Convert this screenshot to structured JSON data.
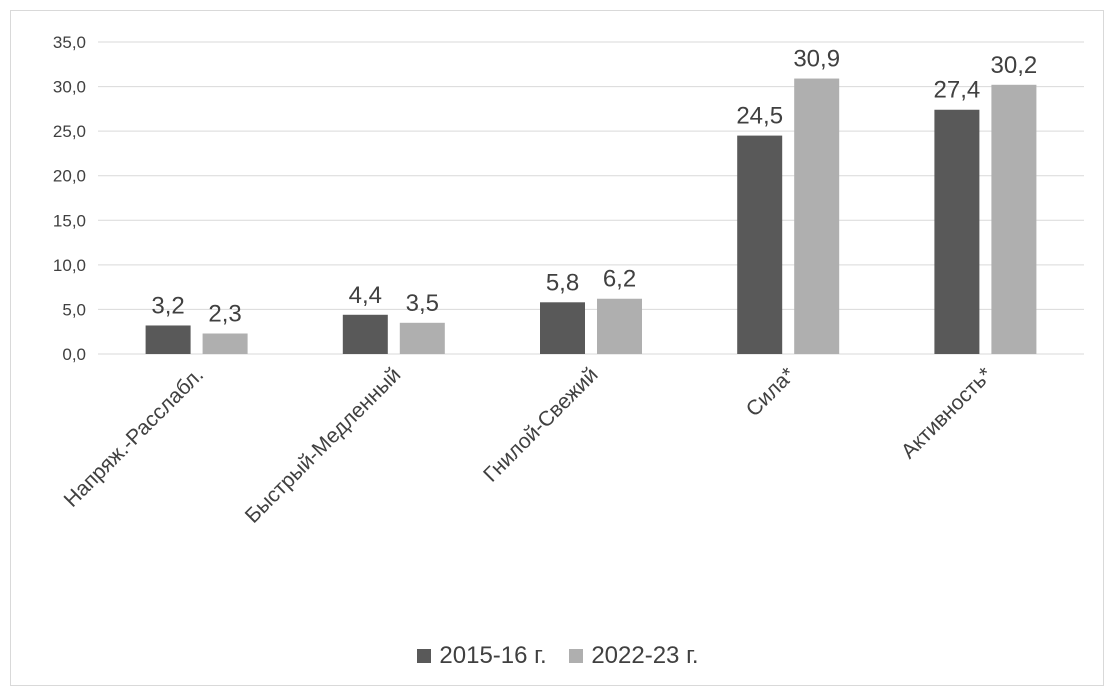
{
  "chart_data": {
    "type": "bar",
    "categories": [
      "Напряж.-Расслабл.",
      "Быстрый-Медленный",
      "Гнилой-Свежий",
      "Сила*",
      "Активность*"
    ],
    "series": [
      {
        "name": "2015-16 г.",
        "values": [
          3.2,
          4.4,
          5.8,
          24.5,
          27.4
        ],
        "labels": [
          "3,2",
          "4,4",
          "5,8",
          "24,5",
          "27,4"
        ],
        "color": "#595959"
      },
      {
        "name": "2022-23 г.",
        "values": [
          2.3,
          3.5,
          6.2,
          30.9,
          30.2
        ],
        "labels": [
          "2,3",
          "3,5",
          "6,2",
          "30,9",
          "30,2"
        ],
        "color": "#afafaf"
      }
    ],
    "yticks": [
      "0,0",
      "5,0",
      "10,0",
      "15,0",
      "20,0",
      "25,0",
      "30,0",
      "35,0"
    ],
    "ylim": [
      0,
      35
    ],
    "grid": true,
    "legend_position": "bottom"
  }
}
